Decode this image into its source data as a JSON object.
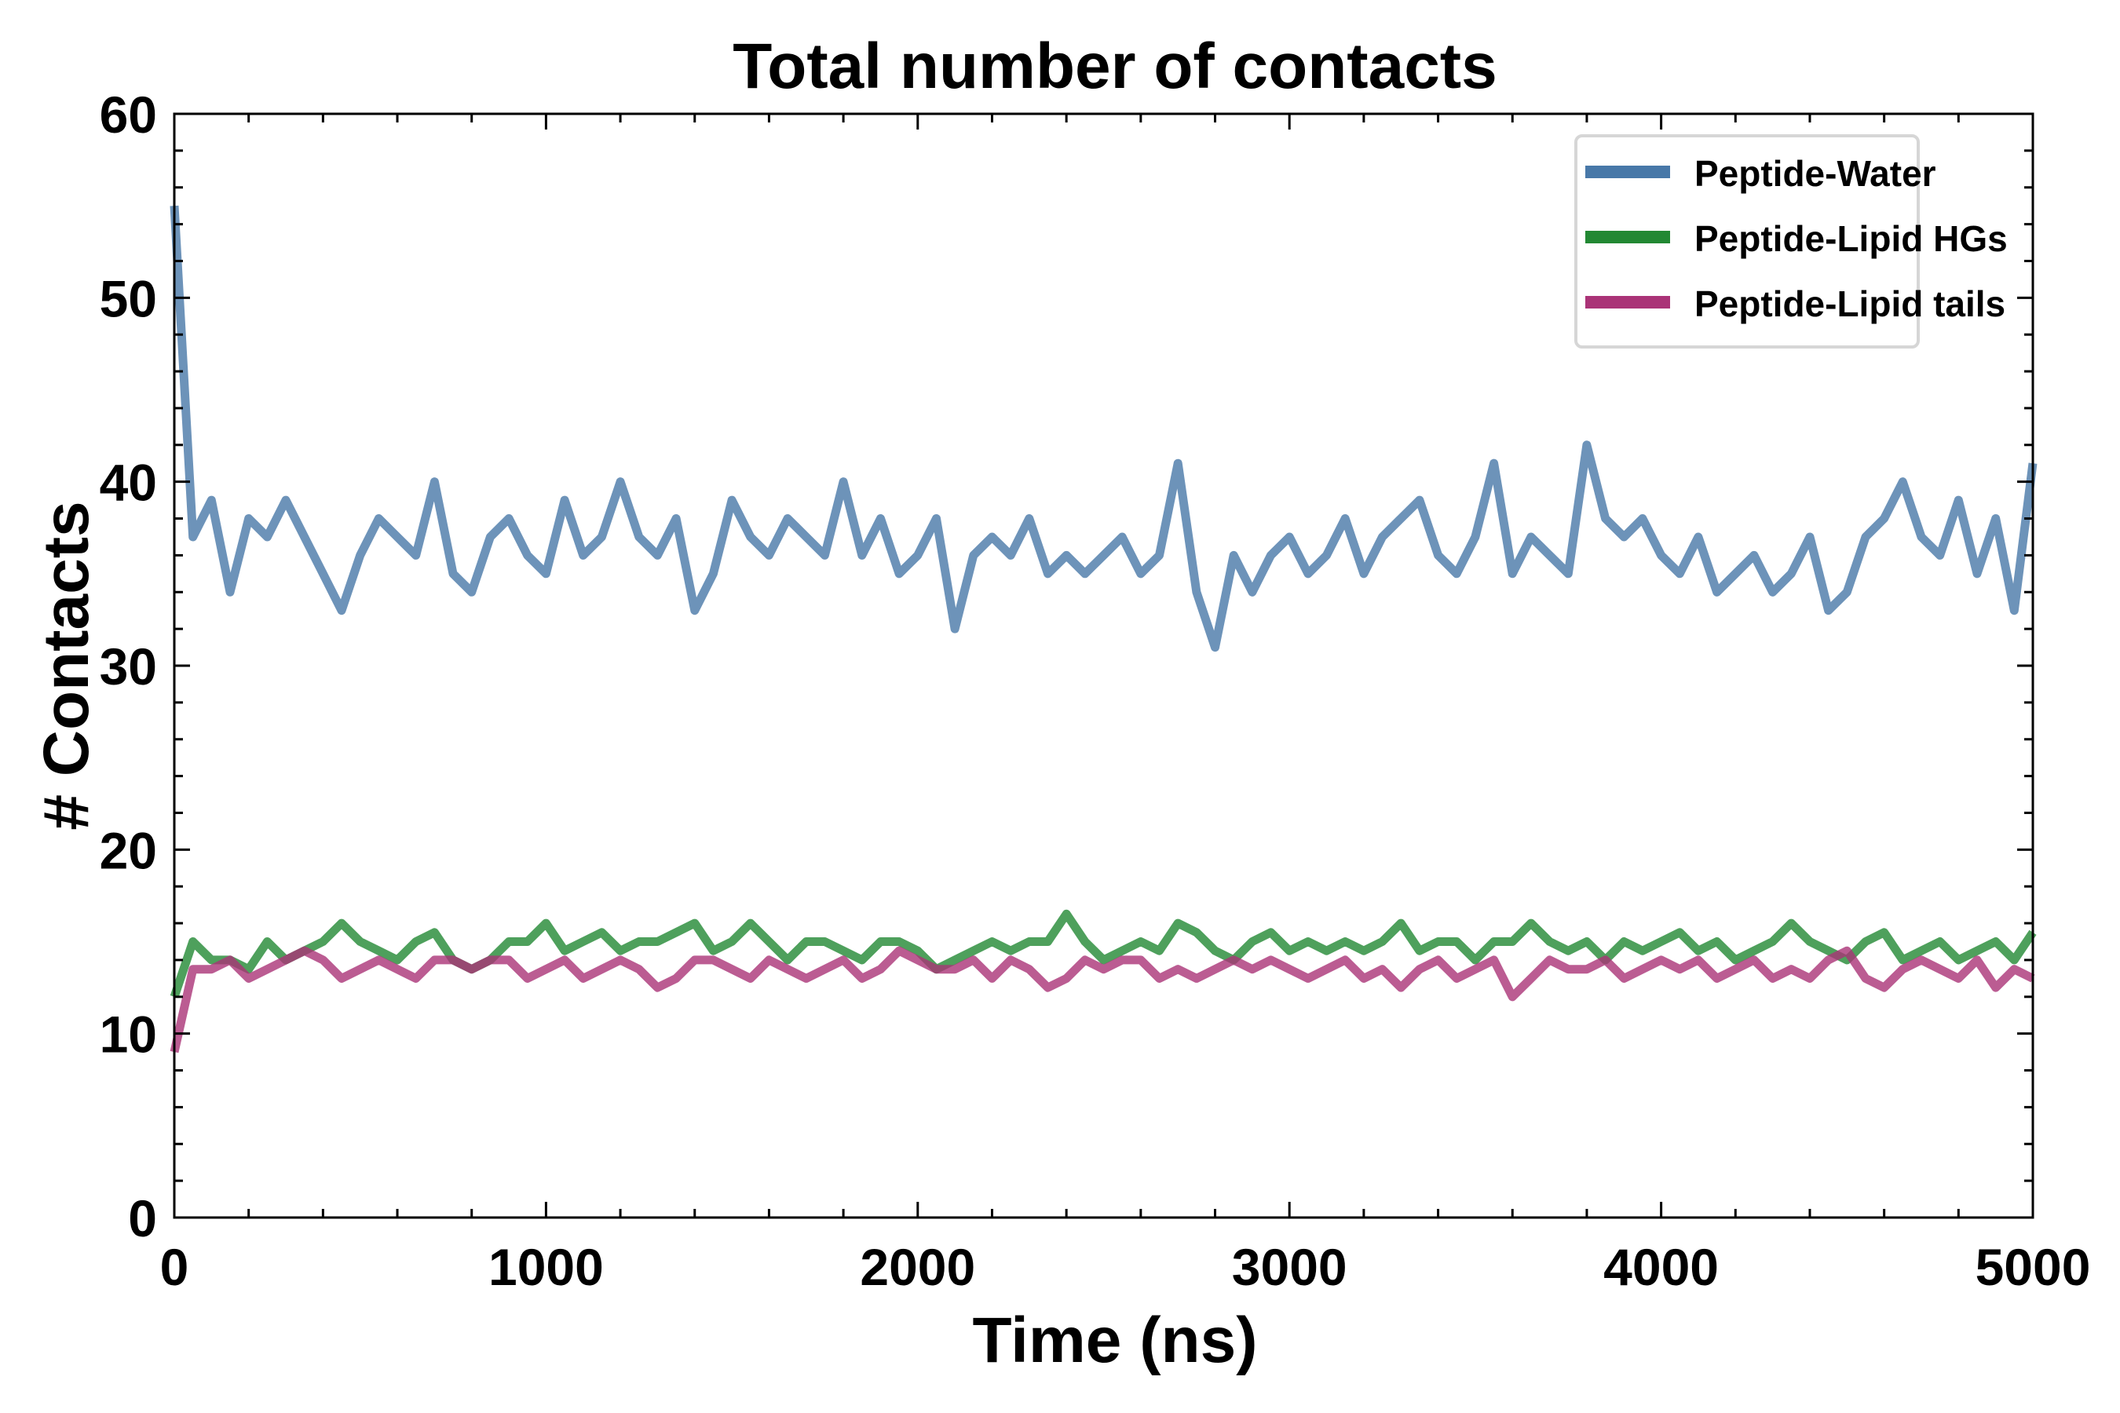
{
  "chart_data": {
    "type": "line",
    "title": "Total number of contacts",
    "xlabel": "Time (ns)",
    "ylabel": "# Contacts",
    "xlim": [
      0,
      5000
    ],
    "ylim": [
      0,
      60
    ],
    "xticks": [
      "0",
      "1000",
      "2000",
      "3000",
      "4000",
      "5000"
    ],
    "yticks": [
      "0",
      "10",
      "20",
      "30",
      "40",
      "50",
      "60"
    ],
    "grid": false,
    "legend_position": "top-right",
    "x_start": 0,
    "x_step": 50,
    "series": [
      {
        "name": "Peptide-Water",
        "color": "#4878a8",
        "values": [
          55,
          37,
          39,
          34,
          38,
          37,
          39,
          37,
          35,
          33,
          36,
          38,
          37,
          36,
          40,
          35,
          34,
          37,
          38,
          36,
          35,
          39,
          36,
          37,
          40,
          37,
          36,
          38,
          33,
          35,
          39,
          37,
          36,
          38,
          37,
          36,
          40,
          36,
          38,
          35,
          36,
          38,
          32,
          36,
          37,
          36,
          38,
          35,
          36,
          35,
          36,
          37,
          35,
          36,
          41,
          34,
          31,
          36,
          34,
          36,
          37,
          35,
          36,
          38,
          35,
          37,
          38,
          39,
          36,
          35,
          37,
          41,
          35,
          37,
          36,
          35,
          42,
          38,
          37,
          38,
          36,
          35,
          37,
          34,
          35,
          36,
          34,
          35,
          37,
          33,
          34,
          37,
          38,
          40,
          37,
          36,
          39,
          35,
          38,
          33,
          41
        ]
      },
      {
        "name": "Peptide-Lipid HGs",
        "color": "#228833",
        "values": [
          12,
          15,
          14,
          14,
          13.5,
          15,
          14,
          14.5,
          15,
          16,
          15,
          14.5,
          14,
          15,
          15.5,
          14,
          13.5,
          14,
          15,
          15,
          16,
          14.5,
          15,
          15.5,
          14.5,
          15,
          15,
          15.5,
          16,
          14.5,
          15,
          16,
          15,
          14,
          15,
          15,
          14.5,
          14,
          15,
          15,
          14.5,
          13.5,
          14,
          14.5,
          15,
          14.5,
          15,
          15,
          16.5,
          15,
          14,
          14.5,
          15,
          14.5,
          16,
          15.5,
          14.5,
          14,
          15,
          15.5,
          14.5,
          15,
          14.5,
          15,
          14.5,
          15,
          16,
          14.5,
          15,
          15,
          14,
          15,
          15,
          16,
          15,
          14.5,
          15,
          14,
          15,
          14.5,
          15,
          15.5,
          14.5,
          15,
          14,
          14.5,
          15,
          16,
          15,
          14.5,
          14,
          15,
          15.5,
          14,
          14.5,
          15,
          14,
          14.5,
          15,
          14,
          15.5
        ]
      },
      {
        "name": "Peptide-Lipid tails",
        "color": "#aa3377",
        "values": [
          9,
          13.5,
          13.5,
          14,
          13,
          13.5,
          14,
          14.5,
          14,
          13,
          13.5,
          14,
          13.5,
          13,
          14,
          14,
          13.5,
          14,
          14,
          13,
          13.5,
          14,
          13,
          13.5,
          14,
          13.5,
          12.5,
          13,
          14,
          14,
          13.5,
          13,
          14,
          13.5,
          13,
          13.5,
          14,
          13,
          13.5,
          14.5,
          14,
          13.5,
          13.5,
          14,
          13,
          14,
          13.5,
          12.5,
          13,
          14,
          13.5,
          14,
          14,
          13,
          13.5,
          13,
          13.5,
          14,
          13.5,
          14,
          13.5,
          13,
          13.5,
          14,
          13,
          13.5,
          12.5,
          13.5,
          14,
          13,
          13.5,
          14,
          12,
          13,
          14,
          13.5,
          13.5,
          14,
          13,
          13.5,
          14,
          13.5,
          14,
          13,
          13.5,
          14,
          13,
          13.5,
          13,
          14,
          14.5,
          13,
          12.5,
          13.5,
          14,
          13.5,
          13,
          14,
          12.5,
          13.5,
          13
        ]
      }
    ]
  }
}
